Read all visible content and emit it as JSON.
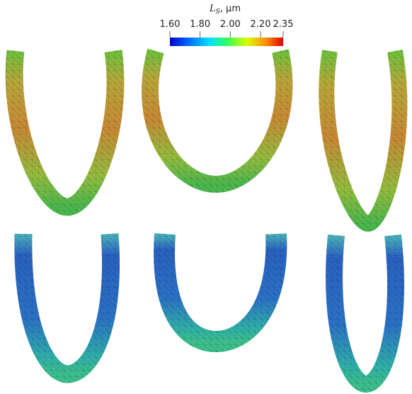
{
  "colorbar": {
    "title": {
      "symbol": "L",
      "subscript": "S",
      "unit": ", μm"
    },
    "range": [
      1.6,
      2.35
    ],
    "ticks": [
      {
        "value": 1.6,
        "label": "1.60"
      },
      {
        "value": 1.8,
        "label": "1.80"
      },
      {
        "value": 2.0,
        "label": "2.00"
      },
      {
        "value": 2.2,
        "label": "2.20"
      },
      {
        "value": 2.35,
        "label": "2.35"
      }
    ]
  }
}
